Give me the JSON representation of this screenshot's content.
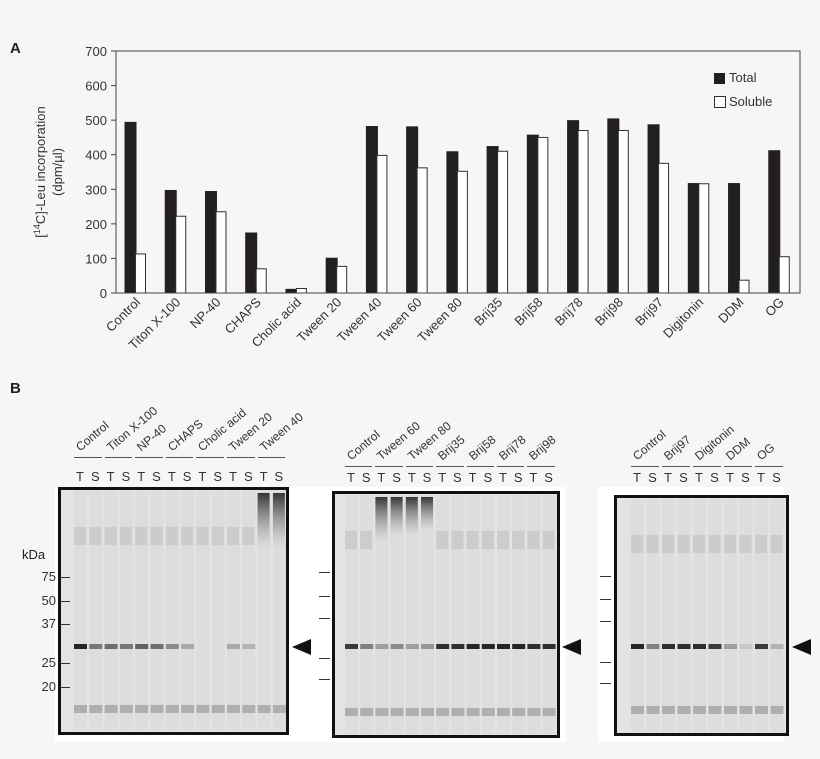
{
  "panel_a_label": "A",
  "panel_b_label": "B",
  "chart_data": {
    "type": "bar",
    "ylabel_line1": "[14C]-Leu incorporation",
    "ylabel_line2": "(dpm/µl)",
    "ylim": [
      0,
      700
    ],
    "yticks": [
      0,
      100,
      200,
      300,
      400,
      500,
      600,
      700
    ],
    "legend_position": "top-right",
    "categories": [
      "Control",
      "Titon X-100",
      "NP-40",
      "CHAPS",
      "Cholic acid",
      "Tween 20",
      "Tween 40",
      "Tween 60",
      "Tween 80",
      "Brij35",
      "Brij58",
      "Brij78",
      "Brij98",
      "Brij97",
      "Digitonin",
      "DDM",
      "OG"
    ],
    "series": [
      {
        "name": "Total",
        "color": "#231f20",
        "values": [
          495,
          298,
          295,
          175,
          12,
          102,
          483,
          482,
          410,
          425,
          458,
          500,
          505,
          488,
          318,
          318,
          413
        ]
      },
      {
        "name": "Soluble",
        "color": "#ffffff",
        "values": [
          113,
          222,
          235,
          70,
          13,
          77,
          398,
          362,
          352,
          410,
          450,
          470,
          470,
          375,
          316,
          37,
          105
        ]
      }
    ]
  },
  "gels": [
    {
      "groups": [
        "Control",
        "Titon X-100",
        "NP-40",
        "CHAPS",
        "Cholic acid",
        "Tween 20",
        "Tween 40"
      ],
      "kda_title": "kDa",
      "kda_markers": [
        "75",
        "50",
        "37",
        "25",
        "20"
      ]
    },
    {
      "groups": [
        "Control",
        "Tween 60",
        "Tween 80",
        "Brij35",
        "Brij58",
        "Brij78",
        "Brij98"
      ]
    },
    {
      "groups": [
        "Control",
        "Brij97",
        "Digitonin",
        "DDM",
        "OG"
      ]
    }
  ],
  "lane_labels": [
    "T",
    "S"
  ]
}
